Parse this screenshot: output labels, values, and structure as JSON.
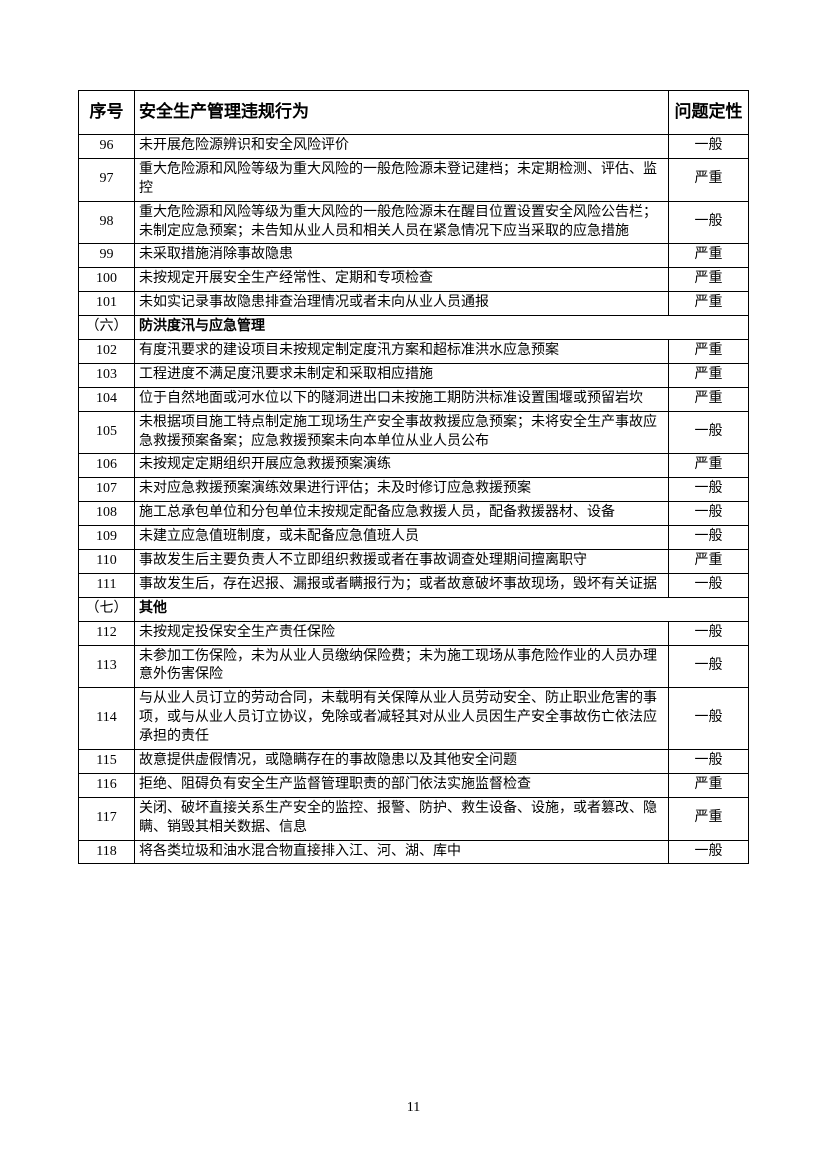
{
  "headers": {
    "seq": "序号",
    "desc": "安全生产管理违规行为",
    "class": "问题定性"
  },
  "rows": [
    {
      "seq": "96",
      "desc": "未开展危险源辨识和安全风险评价",
      "class": "一般"
    },
    {
      "seq": "97",
      "desc": "重大危险源和风险等级为重大风险的一般危险源未登记建档；未定期检测、评估、监控",
      "class": "严重"
    },
    {
      "seq": "98",
      "desc": "重大危险源和风险等级为重大风险的一般危险源未在醒目位置设置安全风险公告栏；未制定应急预案；未告知从业人员和相关人员在紧急情况下应当采取的应急措施",
      "class": "一般"
    },
    {
      "seq": "99",
      "desc": "未采取措施消除事故隐患",
      "class": "严重"
    },
    {
      "seq": "100",
      "desc": "未按规定开展安全生产经常性、定期和专项检查",
      "class": "严重"
    },
    {
      "seq": "101",
      "desc": "未如实记录事故隐患排查治理情况或者未向从业人员通报",
      "class": "严重"
    },
    {
      "seq": "（六）",
      "desc": "防洪度汛与应急管理",
      "class": "",
      "section": true
    },
    {
      "seq": "102",
      "desc": "有度汛要求的建设项目未按规定制定度汛方案和超标准洪水应急预案",
      "class": "严重"
    },
    {
      "seq": "103",
      "desc": "工程进度不满足度汛要求未制定和采取相应措施",
      "class": "严重"
    },
    {
      "seq": "104",
      "desc": "位于自然地面或河水位以下的隧洞进出口未按施工期防洪标准设置围堰或预留岩坎",
      "class": "严重"
    },
    {
      "seq": "105",
      "desc": "未根据项目施工特点制定施工现场生产安全事故救援应急预案；未将安全生产事故应急救援预案备案；应急救援预案未向本单位从业人员公布",
      "class": "一般"
    },
    {
      "seq": "106",
      "desc": "未按规定定期组织开展应急救援预案演练",
      "class": "严重"
    },
    {
      "seq": "107",
      "desc": "未对应急救援预案演练效果进行评估；未及时修订应急救援预案",
      "class": "一般"
    },
    {
      "seq": "108",
      "desc": "施工总承包单位和分包单位未按规定配备应急救援人员，配备救援器材、设备",
      "class": "一般"
    },
    {
      "seq": "109",
      "desc": "未建立应急值班制度，或未配备应急值班人员",
      "class": "一般"
    },
    {
      "seq": "110",
      "desc": "事故发生后主要负责人不立即组织救援或者在事故调查处理期间擅离职守",
      "class": "严重"
    },
    {
      "seq": "111",
      "desc": "事故发生后，存在迟报、漏报或者瞒报行为；或者故意破坏事故现场，毁坏有关证据",
      "class": "一般"
    },
    {
      "seq": "（七）",
      "desc": "其他",
      "class": "",
      "section": true
    },
    {
      "seq": "112",
      "desc": "未按规定投保安全生产责任保险",
      "class": "一般"
    },
    {
      "seq": "113",
      "desc": "未参加工伤保险，未为从业人员缴纳保险费；未为施工现场从事危险作业的人员办理意外伤害保险",
      "class": "一般"
    },
    {
      "seq": "114",
      "desc": "与从业人员订立的劳动合同，未载明有关保障从业人员劳动安全、防止职业危害的事项，或与从业人员订立协议，免除或者减轻其对从业人员因生产安全事故伤亡依法应承担的责任",
      "class": "一般"
    },
    {
      "seq": "115",
      "desc": "故意提供虚假情况，或隐瞒存在的事故隐患以及其他安全问题",
      "class": "一般"
    },
    {
      "seq": "116",
      "desc": "拒绝、阻碍负有安全生产监督管理职责的部门依法实施监督检查",
      "class": "严重"
    },
    {
      "seq": "117",
      "desc": "关闭、破坏直接关系生产安全的监控、报警、防护、救生设备、设施，或者篡改、隐瞒、销毁其相关数据、信息",
      "class": "严重"
    },
    {
      "seq": "118",
      "desc": "将各类垃圾和油水混合物直接排入江、河、湖、库中",
      "class": "一般"
    }
  ],
  "pageNumber": "11"
}
